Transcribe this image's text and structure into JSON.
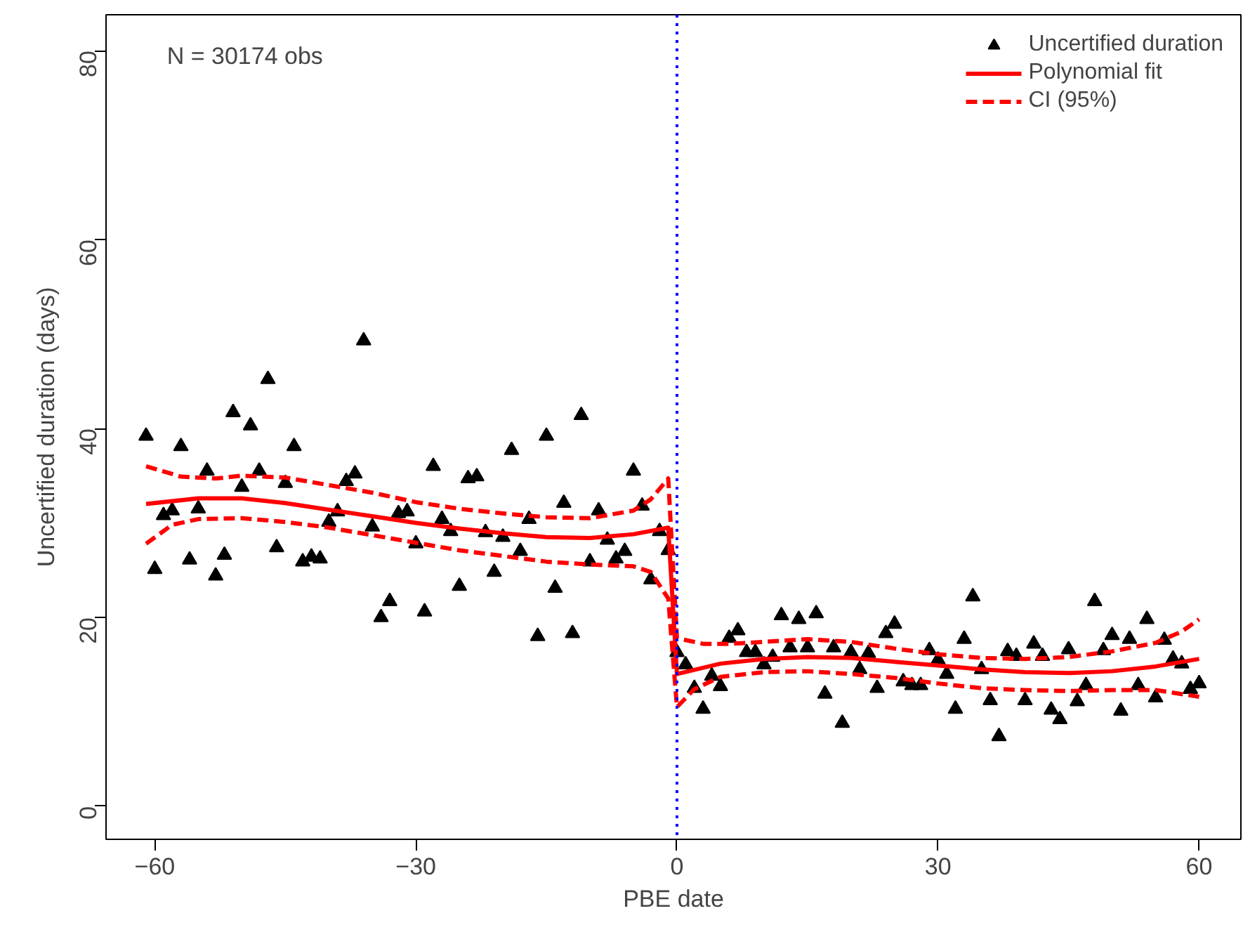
{
  "chart_data": {
    "type": "scatter",
    "xlabel": "PBE date",
    "ylabel": "Uncertified duration (days)",
    "xlim": [
      -65.6,
      64.8
    ],
    "ylim": [
      -3.5,
      83.8
    ],
    "xticks": [
      {
        "value": -60,
        "label": "−60"
      },
      {
        "value": -30,
        "label": "−30"
      },
      0,
      30,
      60
    ],
    "yticks": [
      0,
      20,
      40,
      60,
      80
    ],
    "grid": false,
    "legend": "top right",
    "annotations": [
      "N = 30174 obs"
    ],
    "ref_lines": [
      {
        "axis": "x",
        "value": 0,
        "color": "#0000ff",
        "line_style": "dotted"
      }
    ],
    "series": [
      {
        "name": "Uncertified duration",
        "marker": "triangle",
        "color": "#000000",
        "x": [
          -61,
          -60,
          -59,
          -58,
          -57,
          -56,
          -55,
          -54,
          -53,
          -52,
          -51,
          -50,
          -49,
          -48,
          -47,
          -46,
          -45,
          -44,
          -43,
          -42,
          -41,
          -40,
          -39,
          -38,
          -37,
          -36,
          -35,
          -34,
          -33,
          -32,
          -31,
          -30,
          -29,
          -28,
          -27,
          -26,
          -25,
          -24,
          -23,
          -22,
          -21,
          -20,
          -19,
          -18,
          -17,
          -16,
          -15,
          -14,
          -13,
          -12,
          -11,
          -10,
          -9,
          -8,
          -7,
          -6,
          -5,
          -4,
          -3,
          -2,
          -1,
          0,
          1,
          2,
          3,
          4,
          5,
          6,
          7,
          8,
          9,
          10,
          11,
          12,
          13,
          14,
          15,
          16,
          17,
          18,
          19,
          20,
          21,
          22,
          23,
          24,
          25,
          26,
          27,
          28,
          29,
          30,
          31,
          32,
          33,
          34,
          35,
          36,
          37,
          38,
          39,
          40,
          41,
          42,
          43,
          44,
          45,
          46,
          47,
          48,
          49,
          50,
          51,
          52,
          53,
          54,
          55,
          56,
          57,
          58,
          59,
          60
        ],
        "values": [
          39.2,
          25.1,
          30.8,
          31.3,
          38.1,
          26.1,
          31.5,
          35.5,
          24.4,
          26.6,
          41.7,
          33.8,
          40.3,
          35.5,
          45.2,
          27.4,
          34.2,
          38.1,
          25.9,
          26.4,
          26.2,
          30.1,
          31.2,
          34.4,
          35.2,
          49.3,
          29.6,
          20.0,
          21.7,
          31.0,
          31.2,
          27.8,
          20.6,
          36.0,
          30.4,
          29.1,
          23.3,
          34.7,
          34.9,
          29.0,
          24.8,
          28.5,
          37.7,
          27.0,
          30.4,
          18.0,
          39.2,
          23.1,
          32.1,
          18.3,
          41.4,
          25.9,
          31.3,
          28.2,
          26.2,
          27.0,
          35.5,
          31.8,
          24.0,
          29.1,
          27.1,
          16.3,
          15.0,
          12.5,
          10.3,
          13.8,
          12.7,
          17.8,
          18.6,
          16.3,
          16.3,
          15.0,
          15.8,
          20.2,
          16.8,
          19.8,
          16.8,
          20.4,
          11.9,
          16.8,
          8.8,
          16.3,
          14.5,
          16.2,
          12.5,
          18.3,
          19.3,
          13.2,
          12.8,
          12.8,
          16.5,
          15.5,
          14.0,
          10.3,
          17.7,
          22.2,
          14.5,
          11.2,
          7.4,
          16.4,
          15.9,
          11.2,
          17.2,
          15.9,
          10.2,
          9.2,
          16.6,
          11.1,
          12.8,
          21.7,
          16.5,
          18.1,
          10.1,
          17.7,
          12.8,
          19.8,
          11.5,
          17.6,
          15.6,
          15.1,
          12.4,
          13.0
        ]
      },
      {
        "name": "Polynomial fit",
        "type": "line",
        "line_style": "solid",
        "color": "#ff0000",
        "x": [
          -61,
          -55,
          -50,
          -45,
          -40,
          -35,
          -30,
          -25,
          -20,
          -15,
          -10,
          -5,
          -1,
          0,
          5,
          10,
          15,
          20,
          25,
          30,
          35,
          40,
          45,
          50,
          55,
          60
        ],
        "values": [
          32.0,
          32.6,
          32.6,
          32.1,
          31.4,
          30.7,
          30.0,
          29.4,
          28.9,
          28.5,
          28.4,
          28.8,
          29.5,
          14.0,
          15.1,
          15.6,
          15.8,
          15.7,
          15.3,
          14.9,
          14.5,
          14.2,
          14.1,
          14.3,
          14.8,
          15.6
        ]
      },
      {
        "name": "CI (95%)",
        "type": "line",
        "line_style": "dashed",
        "color": "#ff0000",
        "x": [
          -61,
          -57,
          -53,
          -50,
          -45,
          -40,
          -35,
          -30,
          -25,
          -20,
          -15,
          -10,
          -5,
          -3,
          -1,
          0,
          3,
          6,
          10,
          15,
          20,
          25,
          30,
          35,
          40,
          45,
          50,
          55,
          58,
          60
        ],
        "values": [
          36.0,
          34.9,
          34.7,
          35.0,
          34.8,
          34.0,
          33.2,
          32.2,
          31.5,
          31.0,
          30.6,
          30.5,
          31.3,
          32.5,
          34.7,
          17.8,
          17.2,
          17.2,
          17.4,
          17.7,
          17.4,
          16.7,
          16.1,
          15.7,
          15.6,
          15.8,
          16.4,
          17.3,
          18.5,
          19.8
        ]
      },
      {
        "type": "line",
        "line_style": "dashed",
        "color": "#ff0000",
        "x": [
          -61,
          -58,
          -55,
          -50,
          -45,
          -40,
          -35,
          -30,
          -25,
          -20,
          -15,
          -10,
          -5,
          -3,
          -1,
          0,
          2,
          5,
          10,
          15,
          20,
          25,
          30,
          35,
          40,
          45,
          50,
          55,
          60
        ],
        "values": [
          27.8,
          29.8,
          30.4,
          30.5,
          30.1,
          29.5,
          28.7,
          27.9,
          27.1,
          26.5,
          25.9,
          25.6,
          25.4,
          24.8,
          22.0,
          10.5,
          12.4,
          13.7,
          14.2,
          14.3,
          14.0,
          13.6,
          13.0,
          12.5,
          12.3,
          12.2,
          12.3,
          12.3,
          11.6
        ]
      }
    ]
  }
}
